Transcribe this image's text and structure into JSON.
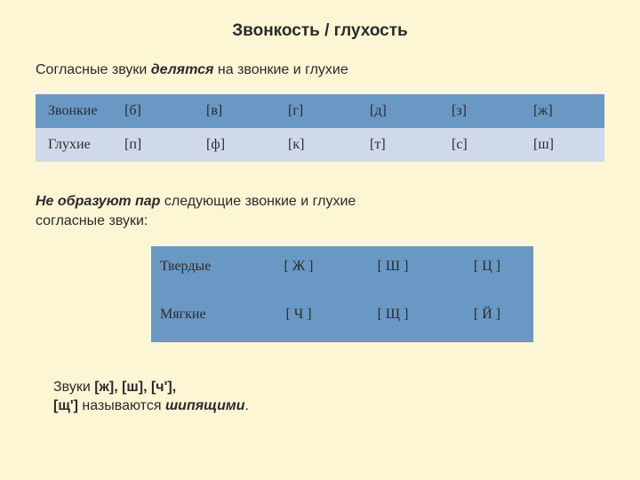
{
  "title": "Звонкость / глухость",
  "intro_pre": "Согласные звуки ",
  "intro_em": "делятся",
  "intro_post": " на звонкие и глухие",
  "table1": {
    "row0_label": "Звонкие",
    "row1_label": "Глухие",
    "row0": [
      "[б]",
      "[в]",
      "[г]",
      "[д]",
      "[з]",
      "[ж]"
    ],
    "row1": [
      "[п]",
      "[ф]",
      "[к]",
      "[т]",
      "[с]",
      "[ш]"
    ],
    "colors": {
      "header_bg": "#6a98c4",
      "row_bg": "#d0d9e9"
    }
  },
  "mid_em": "Не образуют пар",
  "mid_post1": " следующие звонкие и глухие",
  "mid_post2": "согласные звуки:",
  "table2": {
    "row0_label": "Твердые",
    "row1_label": "Мягкие",
    "row0": [
      "[   Ж   ]",
      "[   Ш   ]",
      "[   Ц   ]"
    ],
    "row1": [
      "[   Ч   ]",
      "[   Щ   ]",
      "[   Й   ]"
    ],
    "bg": "#6a98c4"
  },
  "foot_pre": "Звуки ",
  "foot_b": "[ж], [ш], [ч'],",
  "foot_b2": "[щ']",
  "foot_mid": " называются ",
  "foot_em": "шипящими",
  "foot_post": "."
}
